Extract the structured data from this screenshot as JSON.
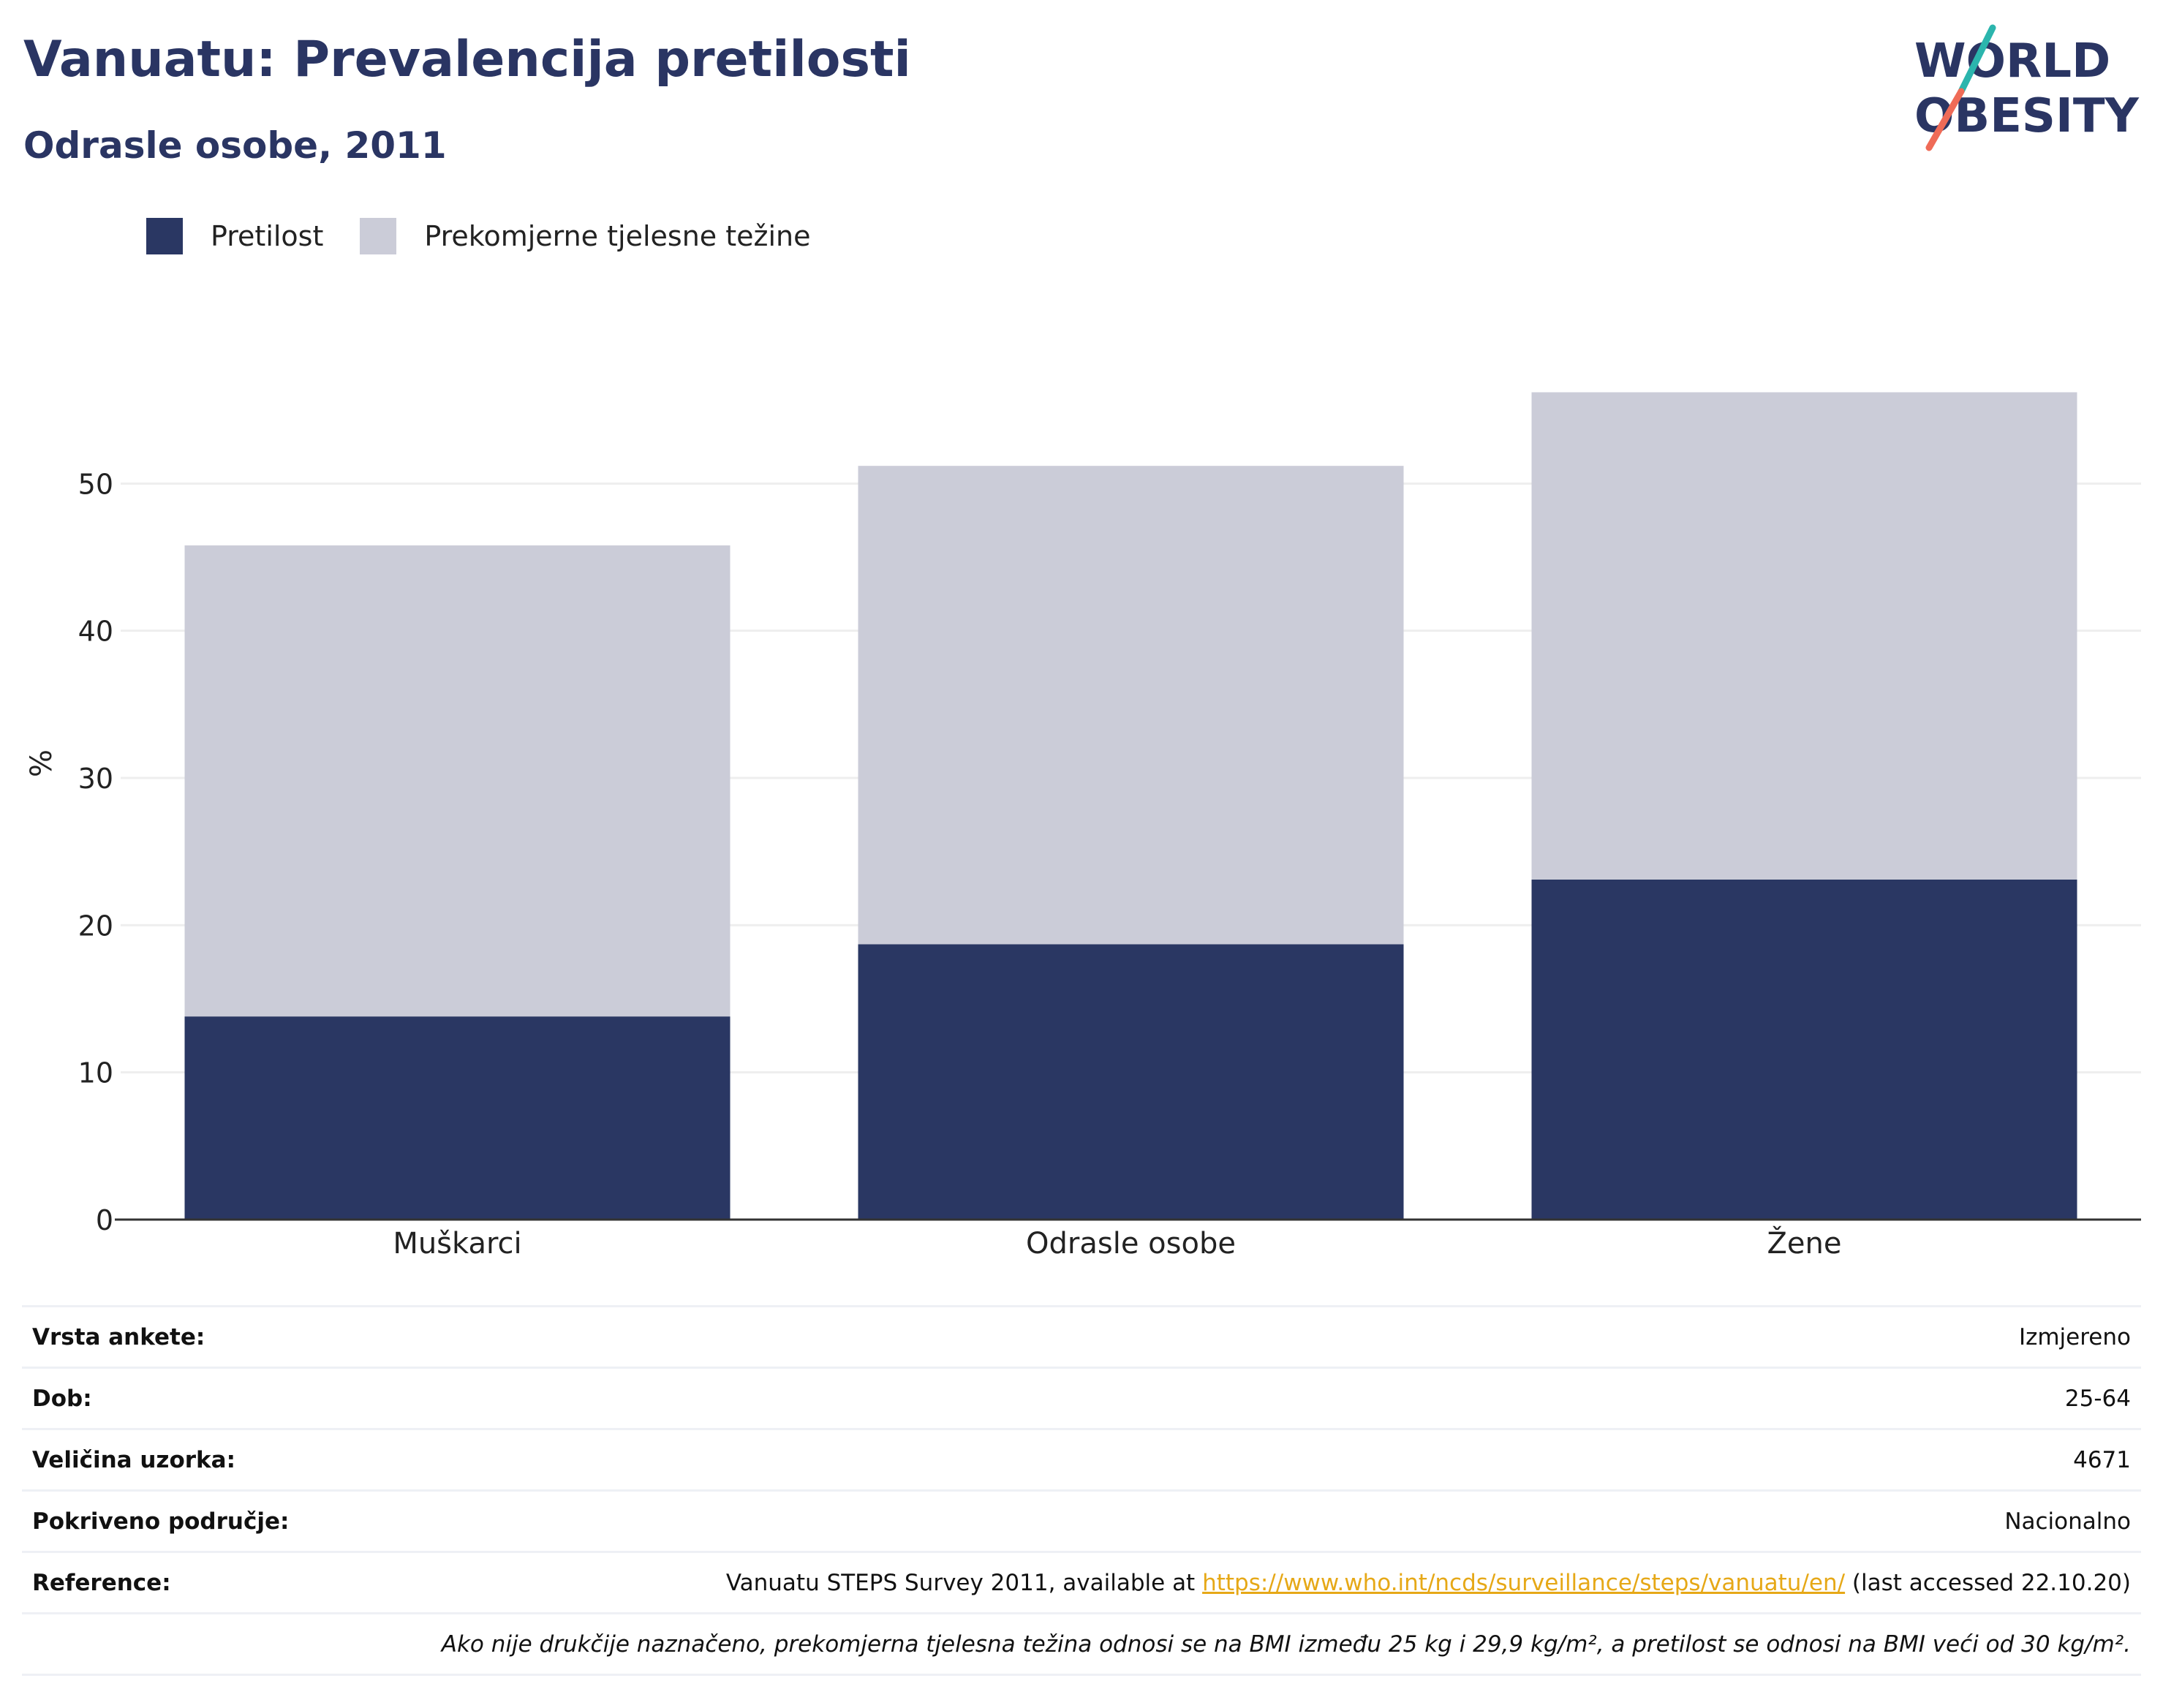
{
  "header": {
    "title": "Vanuatu: Prevalencija pretilosti",
    "subtitle": "Odrasle osobe, 2011"
  },
  "logo": {
    "line1": "WORLD",
    "line2": "OBESITY",
    "accent_teal": "#2bb5ad",
    "accent_coral": "#ef6b57",
    "text_color": "#2a3563"
  },
  "colors": {
    "obesity": "#2a3763",
    "overweight": "#cbccd8",
    "title": "#2a3563",
    "grid": "#eeeeee",
    "axis": "#333333"
  },
  "chart_data": {
    "type": "bar",
    "stacked": true,
    "categories": [
      "Muškarci",
      "Odrasle osobe",
      "Žene"
    ],
    "series": [
      {
        "name": "Pretilost",
        "values": [
          13.8,
          18.7,
          23.1
        ],
        "color": "#2a3763"
      },
      {
        "name": "Prekomjerne tjelesne težine",
        "values": [
          32.0,
          32.5,
          33.1
        ],
        "color": "#cbccd8"
      }
    ],
    "ylabel": "%",
    "xlabel": "",
    "ylim": [
      0,
      60
    ],
    "yticks": [
      0,
      10,
      20,
      30,
      40,
      50
    ],
    "grid": true,
    "legend": "top-left"
  },
  "info": {
    "rows": [
      {
        "label": "Vrsta ankete:",
        "value": "Izmjereno"
      },
      {
        "label": "Dob:",
        "value": "25-64"
      },
      {
        "label": "Veličina uzorka:",
        "value": "4671"
      },
      {
        "label": "Pokriveno područje:",
        "value": "Nacionalno"
      }
    ],
    "reference": {
      "label": "Reference:",
      "prefix": "Vanuatu STEPS Survey 2011, available at ",
      "link": "https://www.who.int/ncds/surveillance/steps/vanuatu/en/",
      "suffix": " (last accessed 22.10.20)"
    },
    "note": "Ako nije drukčije naznačeno, prekomjerna tjelesna težina odnosi se na BMI između 25 kg i 29,9 kg/m², a pretilost se odnosi na BMI veći od 30 kg/m²."
  }
}
